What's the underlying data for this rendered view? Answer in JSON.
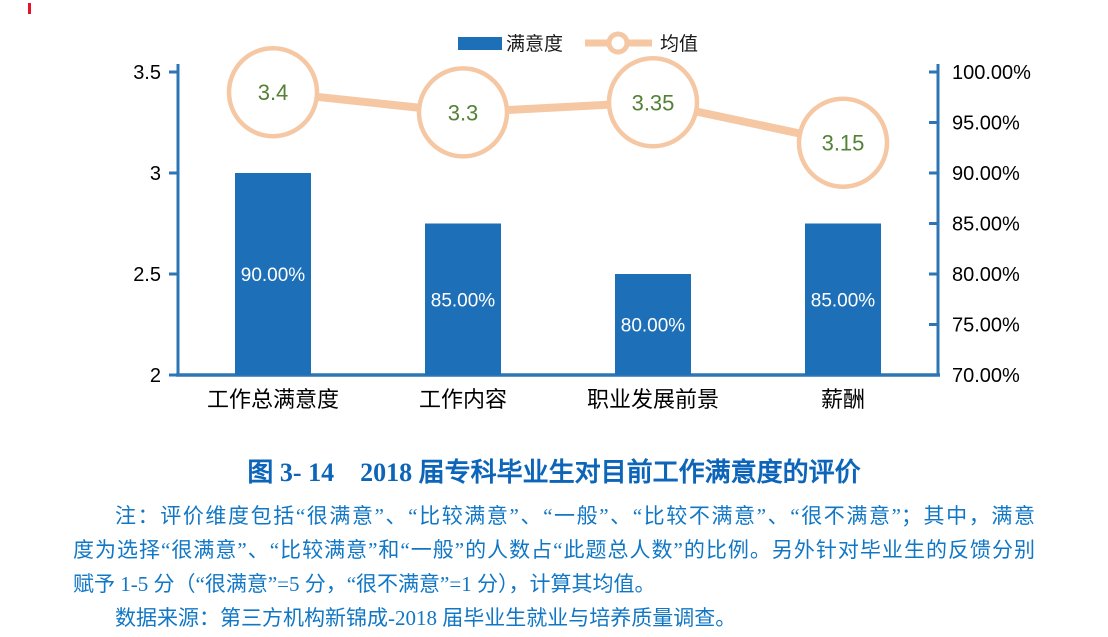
{
  "chart_data": {
    "type": "bar+line combo",
    "title": "",
    "categories": [
      "工作总满意度",
      "工作内容",
      "职业发展前景",
      "薪酬"
    ],
    "series": [
      {
        "name": "满意度",
        "type": "bar",
        "axis": "right",
        "values_percent": [
          90,
          85,
          80,
          85
        ],
        "labels": [
          "90.00%",
          "85.00%",
          "80.00%",
          "85.00%"
        ],
        "color": "#1d6fb8"
      },
      {
        "name": "均值",
        "type": "line",
        "axis": "left",
        "values": [
          3.4,
          3.3,
          3.35,
          3.15
        ],
        "labels": [
          "3.4",
          "3.3",
          "3.35",
          "3.15"
        ],
        "color": "#f5c7a3",
        "label_color": "#538135"
      }
    ],
    "left_axis": {
      "min": 2,
      "max": 3.5,
      "ticks": [
        {
          "v": 3.5,
          "label": "3.5"
        },
        {
          "v": 3,
          "label": "3"
        },
        {
          "v": 2.5,
          "label": "2.5"
        },
        {
          "v": 2,
          "label": "2"
        }
      ]
    },
    "right_axis": {
      "min": 70,
      "max": 100,
      "ticks": [
        {
          "v": 100,
          "label": "100.00%"
        },
        {
          "v": 95,
          "label": "95.00%"
        },
        {
          "v": 90,
          "label": "90.00%"
        },
        {
          "v": 85,
          "label": "85.00%"
        },
        {
          "v": 80,
          "label": "80.00%"
        },
        {
          "v": 75,
          "label": "75.00%"
        },
        {
          "v": 70,
          "label": "70.00%"
        }
      ]
    },
    "legend": [
      {
        "label": "满意度",
        "marker": "bar"
      },
      {
        "label": "均值",
        "marker": "line-circle"
      }
    ],
    "legend_position": "top-center",
    "grid": false,
    "colors": {
      "axis": "#2e75b6",
      "bar_label": "#ffffff"
    }
  },
  "caption": {
    "text": "图 3- 14　2018 届专科毕业生对目前工作满意度的评价"
  },
  "notes": {
    "lines": [
      "注：评价维度包括“很满意”、“比较满意”、“一般”、“比较不满意”、“很不满意”；其中，满意",
      "度为选择“很满意”、“比较满意”和“一般”的人数占“此题总人数”的比例。另外针对毕业生的反馈分别",
      "赋予 1-5 分（“很满意”=5 分，“很不满意”=1 分），计算其均值。",
      "数据来源：第三方机构新锦成-2018 届毕业生就业与培养质量调查。"
    ]
  }
}
